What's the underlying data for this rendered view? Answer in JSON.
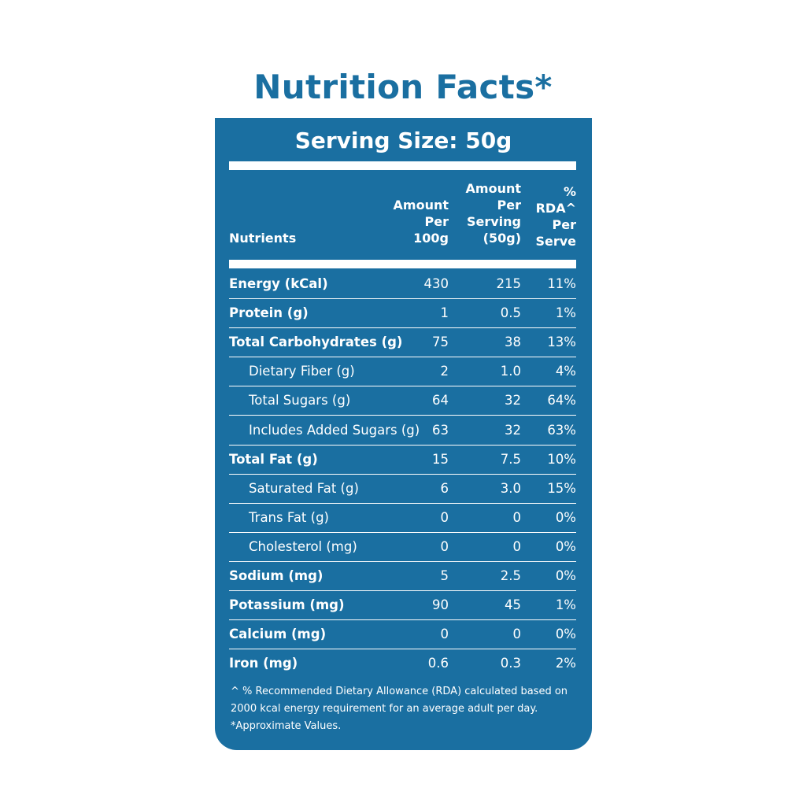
{
  "title": "Nutrition Facts*",
  "serving_size": "Serving Size: 50g",
  "columns": {
    "nutrients": "Nutrients",
    "per_100g": "Amount\nPer\n100g",
    "per_serving": "Amount\nPer\nServing\n(50g)",
    "rda": "%\nRDA^\nPer\nServe"
  },
  "rows": [
    {
      "name": "Energy (kCal)",
      "per_100g": "430",
      "per_serving": "215",
      "rda": "11%",
      "bold": true
    },
    {
      "name": "Protein (g)",
      "per_100g": "1",
      "per_serving": "0.5",
      "rda": "1%",
      "bold": true
    },
    {
      "name": "Total Carbohydrates (g)",
      "per_100g": "75",
      "per_serving": "38",
      "rda": "13%",
      "bold": true
    },
    {
      "name": "Dietary Fiber (g)",
      "per_100g": "2",
      "per_serving": "1.0",
      "rda": "4%",
      "bold": false
    },
    {
      "name": "Total Sugars (g)",
      "per_100g": "64",
      "per_serving": "32",
      "rda": "64%",
      "bold": false
    },
    {
      "name": "Includes Added Sugars (g)",
      "per_100g": "63",
      "per_serving": "32",
      "rda": "63%",
      "bold": false
    },
    {
      "name": "Total Fat (g)",
      "per_100g": "15",
      "per_serving": "7.5",
      "rda": "10%",
      "bold": true
    },
    {
      "name": "Saturated Fat (g)",
      "per_100g": "6",
      "per_serving": "3.0",
      "rda": "15%",
      "bold": false
    },
    {
      "name": "Trans Fat (g)",
      "per_100g": "0",
      "per_serving": "0",
      "rda": "0%",
      "bold": false
    },
    {
      "name": "Cholesterol (mg)",
      "per_100g": "0",
      "per_serving": "0",
      "rda": "0%",
      "bold": false
    },
    {
      "name": "Sodium (mg)",
      "per_100g": "5",
      "per_serving": "2.5",
      "rda": "0%",
      "bold": true
    },
    {
      "name": "Potassium  (mg)",
      "per_100g": "90",
      "per_serving": "45",
      "rda": "1%",
      "bold": true
    },
    {
      "name": "Calcium (mg)",
      "per_100g": "0",
      "per_serving": "0",
      "rda": "0%",
      "bold": true
    },
    {
      "name": "Iron (mg)",
      "per_100g": "0.6",
      "per_serving": "0.3",
      "rda": "2%",
      "bold": true
    }
  ],
  "footnote": {
    "line1": "^ % Recommended Dietary Allowance (RDA) calculated based on",
    "line2": "2000 kcal energy requirement for an average adult per day.",
    "line3": "*Approximate Values."
  },
  "colors": {
    "brand_blue": "#1a6fa1",
    "text_on_blue": "#ffffff"
  }
}
